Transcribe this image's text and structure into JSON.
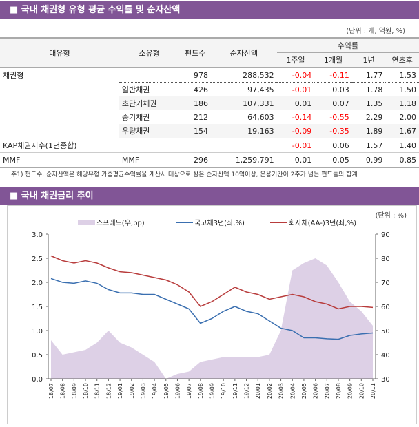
{
  "section1": {
    "title": "■ 국내 채권형 유형 평균 수익률 및 순자산액",
    "unit": "(단위 : 개, 억원, %)",
    "headers": {
      "major": "대유형",
      "minor": "소유형",
      "funds": "펀드수",
      "nav": "순자산액",
      "returns": "수익률",
      "w1": "1주일",
      "m1": "1개월",
      "y1": "1년",
      "ytd": "연초후"
    },
    "rows": [
      [
        "채권형",
        "",
        "978",
        "288,532",
        "-0.04",
        "-0.11",
        "1.77",
        "1.53"
      ],
      [
        "",
        "일반채권",
        "426",
        "97,435",
        "-0.01",
        "0.03",
        "1.78",
        "1.50"
      ],
      [
        "",
        "초단기채권",
        "186",
        "107,331",
        "0.01",
        "0.07",
        "1.35",
        "1.18"
      ],
      [
        "",
        "중기채권",
        "212",
        "64,603",
        "-0.14",
        "-0.55",
        "2.29",
        "2.00"
      ],
      [
        "",
        "우량채권",
        "154",
        "19,163",
        "-0.09",
        "-0.35",
        "1.89",
        "1.67"
      ],
      [
        "KAP채권지수(1년종합)",
        "",
        "",
        "",
        "-0.01",
        "0.06",
        "1.57",
        "1.40"
      ],
      [
        "MMF",
        "MMF",
        "296",
        "1,259,791",
        "0.01",
        "0.05",
        "0.99",
        "0.85"
      ]
    ],
    "note": "주1) 펀드수, 순자산액은 해당유형 가중평균수익률을 계산시 대상으로 삼은 순자산액 10억이상, 운용기간이 2주가 넘는 펀드들의 합계"
  },
  "section2": {
    "title": "■ 국내 채권금리 추이",
    "unit": "(단위 : %)"
  },
  "chart_data": {
    "type": "line",
    "categories": [
      "18/07",
      "18/08",
      "18/09",
      "18/10",
      "18/11",
      "18/12",
      "19/01",
      "19/02",
      "19/03",
      "19/04",
      "19/05",
      "19/06",
      "19/07",
      "19/08",
      "19/09",
      "19/10",
      "19/11",
      "19/12",
      "20/01",
      "20/02",
      "20/03",
      "20/04",
      "20/05",
      "20/06",
      "20/07",
      "20/08",
      "20/09",
      "20/10",
      "20/11"
    ],
    "ylim": [
      0,
      3
    ],
    "yticks": [
      "0.0",
      "0.5",
      "1.0",
      "1.5",
      "2.0",
      "2.5",
      "3.0"
    ],
    "y2lim": [
      30,
      90
    ],
    "y2ticks": [
      "30",
      "40",
      "50",
      "60",
      "70",
      "80",
      "90"
    ],
    "legend": "top",
    "series": [
      {
        "name": "스프레드(우,bp)",
        "type": "area",
        "axis": "right",
        "color": "#ddd0e6",
        "values": [
          46,
          40,
          41,
          42,
          45,
          50,
          45,
          43,
          40,
          37,
          30,
          32,
          33,
          37,
          38,
          39,
          39,
          39,
          39,
          40,
          50,
          75,
          78,
          80,
          77,
          70,
          62,
          58,
          52
        ]
      },
      {
        "name": "국고채3년(좌,%)",
        "type": "line",
        "axis": "left",
        "color": "#3a6fb0",
        "values": [
          2.08,
          2.0,
          1.98,
          2.03,
          1.98,
          1.85,
          1.78,
          1.78,
          1.75,
          1.75,
          1.65,
          1.55,
          1.45,
          1.15,
          1.25,
          1.4,
          1.5,
          1.4,
          1.35,
          1.2,
          1.05,
          1.0,
          0.85,
          0.85,
          0.83,
          0.82,
          0.9,
          0.93,
          0.95
        ]
      },
      {
        "name": "회사채(AA-)3년(좌,%)",
        "type": "line",
        "axis": "left",
        "color": "#b83c3c",
        "values": [
          2.55,
          2.45,
          2.4,
          2.45,
          2.4,
          2.3,
          2.22,
          2.2,
          2.15,
          2.1,
          2.05,
          1.95,
          1.8,
          1.5,
          1.6,
          1.75,
          1.9,
          1.8,
          1.75,
          1.65,
          1.7,
          1.75,
          1.7,
          1.6,
          1.55,
          1.45,
          1.5,
          1.5,
          1.48
        ]
      }
    ]
  }
}
